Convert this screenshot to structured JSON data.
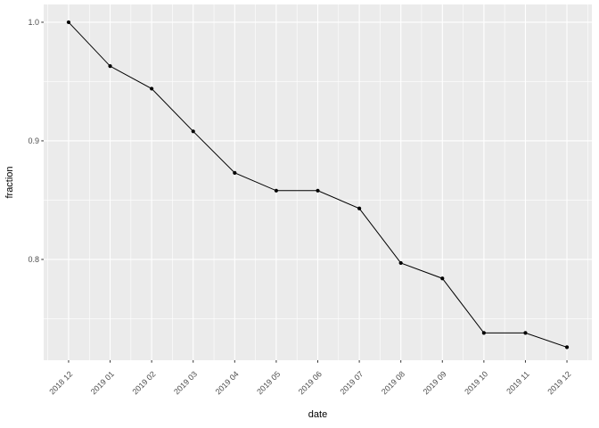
{
  "figure": {
    "background": "#FFFFFF"
  },
  "chart_data": {
    "type": "line",
    "title": "",
    "xlabel": "date",
    "ylabel": "fraction",
    "categories": [
      "2018 12",
      "2019 01",
      "2019 02",
      "2019 03",
      "2019 04",
      "2019 05",
      "2019 06",
      "2019 07",
      "2019 08",
      "2019 09",
      "2019 10",
      "2019 11",
      "2019 12"
    ],
    "values": [
      1.0,
      0.963,
      0.944,
      0.908,
      0.873,
      0.858,
      0.858,
      0.843,
      0.797,
      0.784,
      0.738,
      0.738,
      0.726
    ],
    "y_ticks": [
      1.0,
      0.9,
      0.8
    ],
    "y_tick_labels": [
      "1.0",
      "0.9",
      "0.8"
    ],
    "y_minor_ticks": [
      0.95,
      0.85,
      0.75
    ],
    "ylim": [
      0.715,
      1.015
    ],
    "x_index_lim": [
      -0.6,
      12.6
    ],
    "grid": "major+minor",
    "legend": "none",
    "marker": "filled-circle",
    "x_label_rotation_deg": 45,
    "style": {
      "plot_bg": "#FFFFFF",
      "panel_bg": "#EBEBEB",
      "grid_color": "#FFFFFF",
      "line_color": "#000000",
      "point_color": "#000000",
      "tick_color": "#333333",
      "tick_label_color": "#4D4D4D",
      "axis_title_color": "#000000"
    }
  }
}
